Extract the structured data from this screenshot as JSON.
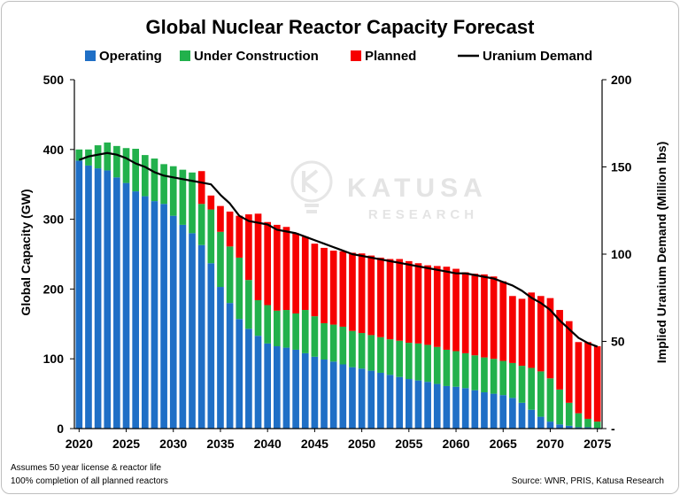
{
  "chart_data": {
    "type": "bar",
    "stacked": true,
    "title": "Global Nuclear Reactor Capacity Forecast",
    "ylabel": "Global Capacity (GW)",
    "y2label": "Implied Uranium Demand (Million lbs)",
    "ylim": [
      0,
      500
    ],
    "y2lim": [
      0,
      200
    ],
    "yticks": [
      "0",
      "100",
      "200",
      "300",
      "400",
      "500"
    ],
    "y2ticks": [
      "-",
      "50",
      "100",
      "150",
      "200"
    ],
    "xticks": [
      "2020",
      "2025",
      "2030",
      "2035",
      "2040",
      "2045",
      "2050",
      "2055",
      "2060",
      "2065",
      "2070",
      "2075"
    ],
    "x": [
      2020,
      2021,
      2022,
      2023,
      2024,
      2025,
      2026,
      2027,
      2028,
      2029,
      2030,
      2031,
      2032,
      2033,
      2034,
      2035,
      2036,
      2037,
      2038,
      2039,
      2040,
      2041,
      2042,
      2043,
      2044,
      2045,
      2046,
      2047,
      2048,
      2049,
      2050,
      2051,
      2052,
      2053,
      2054,
      2055,
      2056,
      2057,
      2058,
      2059,
      2060,
      2061,
      2062,
      2063,
      2064,
      2065,
      2066,
      2067,
      2068,
      2069,
      2070,
      2071,
      2072,
      2073,
      2074,
      2075
    ],
    "series": [
      {
        "name": "Operating",
        "color": "#1f6fc6",
        "values": [
          384,
          377,
          373,
          370,
          360,
          352,
          340,
          333,
          326,
          322,
          305,
          292,
          280,
          263,
          237,
          203,
          180,
          157,
          143,
          133,
          122,
          118,
          116,
          113,
          108,
          103,
          99,
          96,
          92,
          88,
          86,
          83,
          80,
          77,
          74,
          71,
          69,
          67,
          64,
          61,
          60,
          58,
          55,
          52,
          50,
          48,
          44,
          37,
          27,
          17,
          10,
          6,
          4,
          2,
          2,
          1
        ]
      },
      {
        "name": "Under Construction",
        "color": "#22b14c",
        "values": [
          16,
          23,
          33,
          40,
          45,
          50,
          61,
          59,
          61,
          57,
          71,
          79,
          87,
          59,
          77,
          79,
          81,
          88,
          70,
          51,
          55,
          51,
          54,
          52,
          62,
          58,
          52,
          53,
          54,
          52,
          51,
          51,
          51,
          51,
          52,
          52,
          53,
          53,
          53,
          52,
          51,
          50,
          50,
          50,
          50,
          49,
          50,
          53,
          60,
          65,
          62,
          50,
          33,
          20,
          12,
          9
        ]
      },
      {
        "name": "Planned",
        "color": "#f60000",
        "values": [
          0,
          0,
          0,
          0,
          0,
          0,
          0,
          0,
          0,
          0,
          0,
          0,
          0,
          47,
          20,
          37,
          50,
          60,
          94,
          124,
          119,
          123,
          119,
          115,
          105,
          104,
          108,
          106,
          108,
          112,
          114,
          114,
          114,
          115,
          117,
          117,
          115,
          114,
          116,
          119,
          118,
          116,
          117,
          119,
          118,
          114,
          96,
          96,
          108,
          108,
          115,
          114,
          117,
          102,
          110,
          108
        ]
      },
      {
        "name": "Uranium Demand",
        "color": "#000000",
        "type": "line",
        "axis": "secondary",
        "values": [
          154,
          156,
          157,
          158,
          157,
          155,
          152,
          150,
          147,
          145,
          144,
          143,
          142,
          141,
          140,
          134,
          129,
          122,
          119,
          118,
          117,
          114,
          113,
          112,
          110,
          108,
          106,
          104,
          102,
          100,
          99,
          98,
          97,
          96,
          95,
          94,
          93,
          92,
          91,
          90,
          89,
          89,
          88,
          87,
          86,
          84,
          82,
          79,
          75,
          72,
          68,
          62,
          57,
          52,
          49,
          47
        ]
      }
    ],
    "legend": "top"
  },
  "watermark": {
    "name": "KATUSA",
    "sub": "RESEARCH"
  },
  "notes": [
    "Assumes 50 year license & reactor life",
    "100% completion of all planned reactors"
  ],
  "source": "Source: WNR, PRIS, Katusa Research"
}
